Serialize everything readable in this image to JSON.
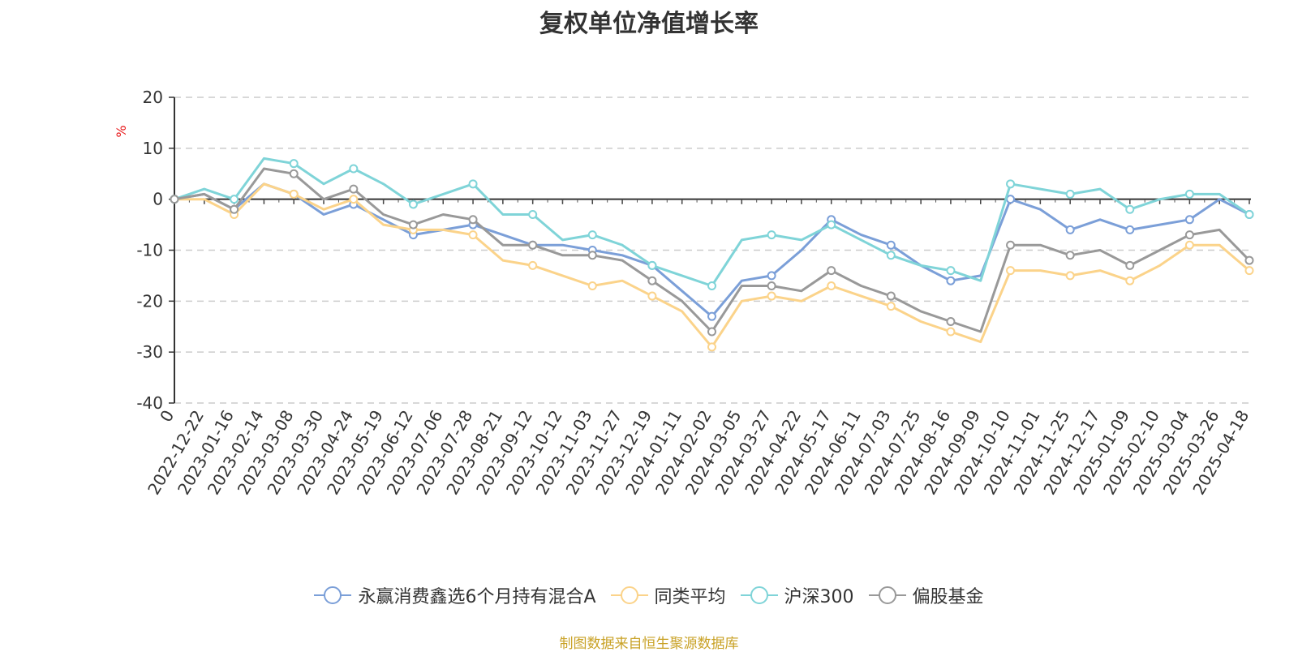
{
  "page": {
    "source_note": "制图数据来自恒生聚源数据库"
  },
  "chart_data": {
    "type": "line",
    "title": "复权单位净值增长率",
    "ylabel": "%",
    "ylim": [
      -40,
      20
    ],
    "yticks": [
      20,
      10,
      0,
      -10,
      -20,
      -30,
      -40
    ],
    "grid": true,
    "legend_position": "bottom",
    "x_tick_labels": [
      "0",
      "2022-12-22",
      "2023-01-16",
      "2023-02-14",
      "2023-03-08",
      "2023-03-30",
      "2023-04-24",
      "2023-05-19",
      "2023-06-12",
      "2023-07-06",
      "2023-07-28",
      "2023-08-21",
      "2023-09-12",
      "2023-10-12",
      "2023-11-03",
      "2023-11-27",
      "2023-12-19",
      "2024-01-11",
      "2024-02-02",
      "2024-03-05",
      "2024-03-27",
      "2024-04-22",
      "2024-05-17",
      "2024-06-11",
      "2024-07-03",
      "2024-07-25",
      "2024-08-16",
      "2024-09-09",
      "2024-10-10",
      "2024-11-01",
      "2024-11-25",
      "2024-12-17",
      "2025-01-09",
      "2025-02-10",
      "2025-03-04",
      "2025-03-26",
      "2025-04-18"
    ],
    "series": [
      {
        "name": "永赢消费鑫选6个月持有混合A",
        "color": "#7b9fd8",
        "values": [
          0,
          1,
          -2,
          3,
          1,
          -3,
          -1,
          -4,
          -7,
          -6,
          -5,
          -7,
          -9,
          -9,
          -10,
          -11,
          -13,
          -18,
          -23,
          -16,
          -15,
          -10,
          -4,
          -7,
          -9,
          -13,
          -16,
          -15,
          0,
          -2,
          -6,
          -4,
          -6,
          -5,
          -4,
          0,
          -3
        ]
      },
      {
        "name": "同类平均",
        "color": "#fbd38a",
        "values": [
          0,
          0,
          -3,
          3,
          1,
          -2,
          0,
          -5,
          -6,
          -6,
          -7,
          -12,
          -13,
          -15,
          -17,
          -16,
          -19,
          -22,
          -29,
          -20,
          -19,
          -20,
          -17,
          -19,
          -21,
          -24,
          -26,
          -28,
          -14,
          -14,
          -15,
          -14,
          -16,
          -13,
          -9,
          -9,
          -14
        ]
      },
      {
        "name": "沪深300",
        "color": "#7fd4d8",
        "values": [
          0,
          2,
          0,
          8,
          7,
          3,
          6,
          3,
          -1,
          1,
          3,
          -3,
          -3,
          -8,
          -7,
          -9,
          -13,
          -15,
          -17,
          -8,
          -7,
          -8,
          -5,
          -8,
          -11,
          -13,
          -14,
          -16,
          3,
          2,
          1,
          2,
          -2,
          0,
          1,
          1,
          -3
        ]
      },
      {
        "name": "偏股基金",
        "color": "#999999",
        "values": [
          0,
          1,
          -2,
          6,
          5,
          0,
          2,
          -3,
          -5,
          -3,
          -4,
          -9,
          -9,
          -11,
          -11,
          -12,
          -16,
          -20,
          -26,
          -17,
          -17,
          -18,
          -14,
          -17,
          -19,
          -22,
          -24,
          -26,
          -9,
          -9,
          -11,
          -10,
          -13,
          -10,
          -7,
          -6,
          -12
        ]
      }
    ]
  }
}
